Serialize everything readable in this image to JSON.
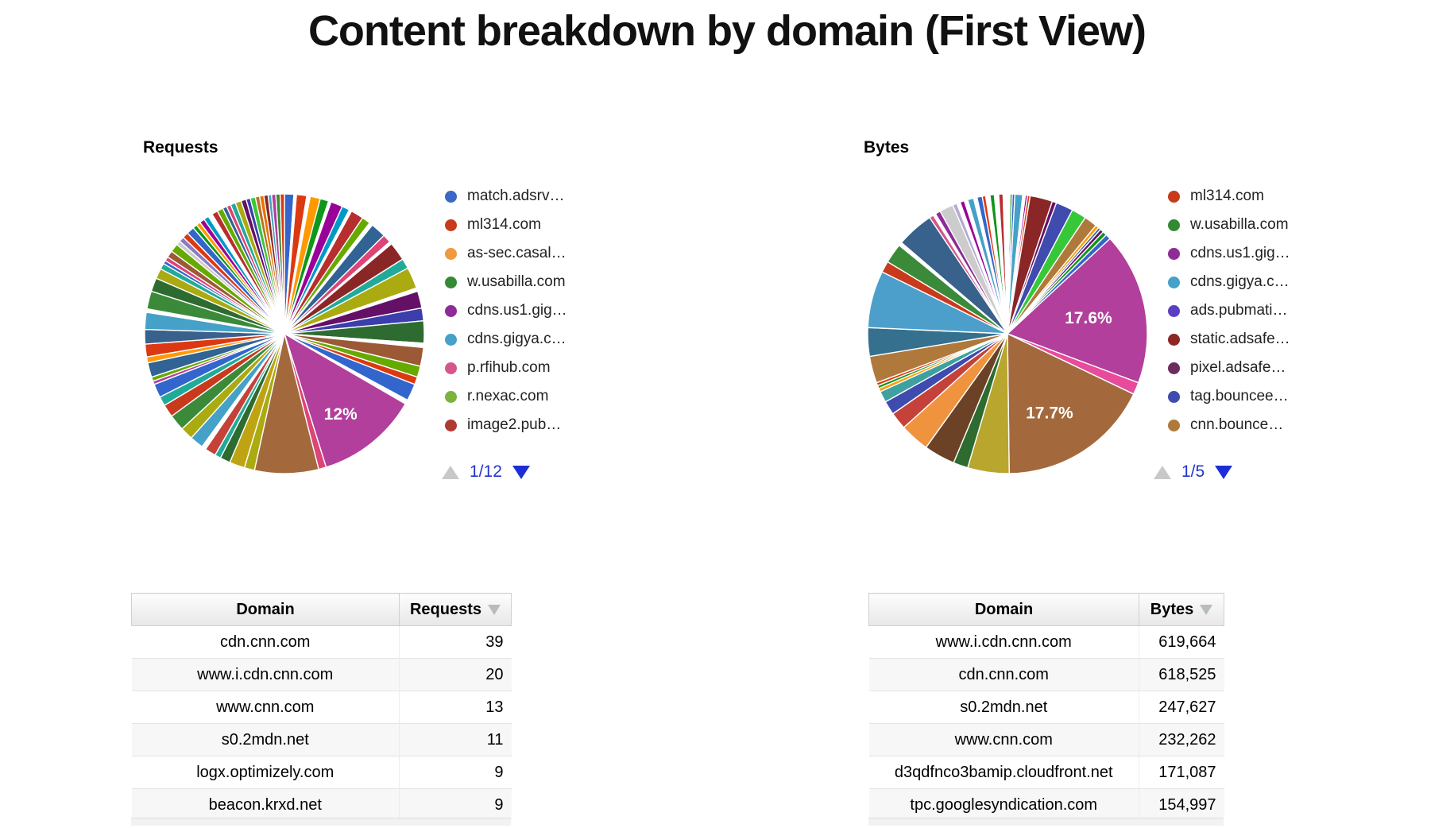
{
  "title": "Content breakdown by domain (First View)",
  "charts": {
    "requests": {
      "label": "Requests",
      "pager_label": "1/12",
      "legend": [
        {
          "label": "match.adsrv…",
          "color": "#3B68C5"
        },
        {
          "label": "ml314.com",
          "color": "#C93A1D"
        },
        {
          "label": "as-sec.casal…",
          "color": "#F0993E"
        },
        {
          "label": "w.usabilla.com",
          "color": "#338A33"
        },
        {
          "label": "cdns.us1.gig…",
          "color": "#8E2B96"
        },
        {
          "label": "cdns.gigya.c…",
          "color": "#45A1C7"
        },
        {
          "label": "p.rfihub.com",
          "color": "#D5578A"
        },
        {
          "label": "r.nexac.com",
          "color": "#7AB33E"
        },
        {
          "label": "image2.pub…",
          "color": "#AF3A34"
        }
      ],
      "labels": [
        {
          "text": "12%",
          "angle": 145,
          "rf": 0.7
        }
      ],
      "slices": [
        [
          1.1,
          "#3366CC"
        ],
        [
          0.3,
          "#FFFFFF"
        ],
        [
          1.2,
          "#DC3912"
        ],
        [
          0.4,
          "#FFFFFF"
        ],
        [
          1.2,
          "#FF9900"
        ],
        [
          1.0,
          "#109618"
        ],
        [
          0.3,
          "#FFFFFF"
        ],
        [
          1.4,
          "#990099"
        ],
        [
          0.9,
          "#0099C6"
        ],
        [
          0.3,
          "#FFFFFF"
        ],
        [
          1.5,
          "#B82E2E"
        ],
        [
          1.0,
          "#66AA00"
        ],
        [
          0.4,
          "#FFFFFF"
        ],
        [
          1.8,
          "#316395"
        ],
        [
          1.0,
          "#DD4477"
        ],
        [
          0.3,
          "#FFFFFF"
        ],
        [
          2.2,
          "#8B2626"
        ],
        [
          1.2,
          "#22AA99"
        ],
        [
          2.5,
          "#AAAA11"
        ],
        [
          0.4,
          "#FFFFFF"
        ],
        [
          2.0,
          "#651067"
        ],
        [
          1.5,
          "#3B3EAC"
        ],
        [
          2.6,
          "#2E6B30"
        ],
        [
          0.5,
          "#FFFFFF"
        ],
        [
          2.2,
          "#9C5935"
        ],
        [
          1.3,
          "#66AA00"
        ],
        [
          0.9,
          "#DC3912"
        ],
        [
          2.0,
          "#3366CC"
        ],
        [
          0.5,
          "#FFFFFF"
        ],
        [
          12.0,
          "#B23F9B"
        ],
        [
          0.9,
          "#DD4477"
        ],
        [
          7.5,
          "#A3693C"
        ],
        [
          1.2,
          "#AAAA11"
        ],
        [
          1.8,
          "#BEA413"
        ],
        [
          1.2,
          "#2E6B30"
        ],
        [
          0.7,
          "#22AA99"
        ],
        [
          1.3,
          "#C4423A"
        ],
        [
          0.5,
          "#FFFFFF"
        ],
        [
          1.6,
          "#45A1C7"
        ],
        [
          1.5,
          "#AAAA11"
        ],
        [
          1.9,
          "#3A8A3A"
        ],
        [
          1.5,
          "#C93A1D"
        ],
        [
          1.1,
          "#22AA99"
        ],
        [
          1.6,
          "#3366CC"
        ],
        [
          0.4,
          "#B23F9B"
        ],
        [
          0.5,
          "#66AA00"
        ],
        [
          1.7,
          "#316395"
        ],
        [
          0.7,
          "#FF9900"
        ],
        [
          1.5,
          "#DC3912"
        ],
        [
          1.7,
          "#38618C"
        ],
        [
          2.0,
          "#45A1C7"
        ],
        [
          0.4,
          "#FFFFFF"
        ],
        [
          2.1,
          "#3A8A3A"
        ],
        [
          1.6,
          "#2E6B30"
        ],
        [
          1.2,
          "#AAAA11"
        ],
        [
          0.7,
          "#22AA99"
        ],
        [
          0.4,
          "#3366CC"
        ],
        [
          0.5,
          "#DD4477"
        ],
        [
          0.8,
          "#9C5935"
        ],
        [
          1.0,
          "#66AA00"
        ],
        [
          0.5,
          "#CCCCCC"
        ],
        [
          0.6,
          "#8C7BC4"
        ],
        [
          0.7,
          "#DC3912"
        ],
        [
          0.9,
          "#3366CC"
        ],
        [
          0.5,
          "#109618"
        ],
        [
          0.5,
          "#FF9900"
        ],
        [
          0.6,
          "#990099"
        ],
        [
          0.6,
          "#0099C6"
        ],
        [
          0.5,
          "#FFFFFF"
        ],
        [
          0.7,
          "#B82E2E"
        ],
        [
          0.7,
          "#66AA00"
        ],
        [
          0.5,
          "#316395"
        ],
        [
          0.5,
          "#DD4477"
        ],
        [
          0.6,
          "#22AA99"
        ],
        [
          0.7,
          "#AAAA11"
        ],
        [
          0.6,
          "#651067"
        ],
        [
          0.5,
          "#3B3EAC"
        ],
        [
          0.6,
          "#37C837"
        ],
        [
          0.5,
          "#B77322"
        ],
        [
          0.5,
          "#E67300"
        ],
        [
          0.5,
          "#8B2626"
        ],
        [
          0.4,
          "#45A1C7"
        ],
        [
          0.5,
          "#B23F9B"
        ],
        [
          0.5,
          "#3A8A3A"
        ],
        [
          0.5,
          "#DC3912"
        ]
      ]
    },
    "bytes": {
      "label": "Bytes",
      "pager_label": "1/5",
      "legend": [
        {
          "label": "ml314.com",
          "color": "#C93A1D"
        },
        {
          "label": "w.usabilla.com",
          "color": "#338A33"
        },
        {
          "label": "cdns.us1.gig…",
          "color": "#8E2B96"
        },
        {
          "label": "cdns.gigya.c…",
          "color": "#45A1C7"
        },
        {
          "label": "ads.pubmati…",
          "color": "#5B3FC2"
        },
        {
          "label": "static.adsafe…",
          "color": "#8E2626"
        },
        {
          "label": "pixel.adsafe…",
          "color": "#6A2D5E"
        },
        {
          "label": "tag.bouncee…",
          "color": "#3F4BAE"
        },
        {
          "label": "cnn.bounce…",
          "color": "#B0793C"
        }
      ],
      "labels": [
        {
          "text": "17.6%",
          "angle": 79,
          "rf": 0.59
        },
        {
          "text": "17.7%",
          "angle": 152,
          "rf": 0.64
        }
      ],
      "slices": [
        [
          0.3,
          "#FFFFFF"
        ],
        [
          0.25,
          "#109618"
        ],
        [
          0.3,
          "#3366CC"
        ],
        [
          0.9,
          "#45A1C7"
        ],
        [
          0.3,
          "#FFFFFF"
        ],
        [
          0.25,
          "#990099"
        ],
        [
          0.3,
          "#DC3912"
        ],
        [
          2.6,
          "#8B2626"
        ],
        [
          0.5,
          "#651067"
        ],
        [
          2.0,
          "#3F4BAE"
        ],
        [
          1.7,
          "#37C837"
        ],
        [
          1.5,
          "#B0793C"
        ],
        [
          0.4,
          "#FF9900"
        ],
        [
          0.3,
          "#316395"
        ],
        [
          0.4,
          "#651067"
        ],
        [
          0.5,
          "#109618"
        ],
        [
          0.6,
          "#3366CC"
        ],
        [
          17.6,
          "#B23F9B"
        ],
        [
          1.4,
          "#E84A9C"
        ],
        [
          17.7,
          "#A3693C"
        ],
        [
          4.8,
          "#B8A62E"
        ],
        [
          1.7,
          "#2E6B30"
        ],
        [
          3.6,
          "#6B4226"
        ],
        [
          3.4,
          "#F0933E"
        ],
        [
          2.0,
          "#C4423A"
        ],
        [
          1.6,
          "#3F4BAE"
        ],
        [
          1.3,
          "#3FA0A0"
        ],
        [
          0.4,
          "#FF9900"
        ],
        [
          0.35,
          "#109618"
        ],
        [
          0.35,
          "#DC3912"
        ],
        [
          3.1,
          "#B0793C"
        ],
        [
          3.3,
          "#35708E"
        ],
        [
          6.6,
          "#4D9FCB"
        ],
        [
          1.3,
          "#C93A1D"
        ],
        [
          2.3,
          "#3A8A3A"
        ],
        [
          0.4,
          "#FFFFFF"
        ],
        [
          4.3,
          "#38618C"
        ],
        [
          0.5,
          "#D5578A"
        ],
        [
          0.3,
          "#FFFFFF"
        ],
        [
          0.6,
          "#8E2B96"
        ],
        [
          1.6,
          "#CCCCCC"
        ],
        [
          0.5,
          "#B5A9D4"
        ],
        [
          0.4,
          "#FFFFFF"
        ],
        [
          0.5,
          "#990099"
        ],
        [
          0.4,
          "#FFFFFF"
        ],
        [
          0.7,
          "#45A1C7"
        ],
        [
          0.4,
          "#FFFFFF"
        ],
        [
          0.6,
          "#3366CC"
        ],
        [
          0.4,
          "#DC3912"
        ],
        [
          0.5,
          "#FFFFFF"
        ],
        [
          0.5,
          "#109618"
        ],
        [
          0.5,
          "#FFFFFF"
        ],
        [
          0.5,
          "#B82E2E"
        ],
        [
          0.5,
          "#FFFFFF"
        ]
      ]
    }
  },
  "tables": {
    "requests": {
      "columns": [
        "Domain",
        "Requests"
      ],
      "rows": [
        [
          "cdn.cnn.com",
          "39"
        ],
        [
          "www.i.cdn.cnn.com",
          "20"
        ],
        [
          "www.cnn.com",
          "13"
        ],
        [
          "s0.2mdn.net",
          "11"
        ],
        [
          "logx.optimizely.com",
          "9"
        ],
        [
          "beacon.krxd.net",
          "9"
        ]
      ]
    },
    "bytes": {
      "columns": [
        "Domain",
        "Bytes"
      ],
      "rows": [
        [
          "www.i.cdn.cnn.com",
          "619,664"
        ],
        [
          "cdn.cnn.com",
          "618,525"
        ],
        [
          "s0.2mdn.net",
          "247,627"
        ],
        [
          "www.cnn.com",
          "232,262"
        ],
        [
          "d3qdfnco3bamip.cloudfront.net",
          "171,087"
        ],
        [
          "tpc.googlesyndication.com",
          "154,997"
        ]
      ]
    }
  },
  "chart_data": [
    {
      "type": "pie",
      "title": "Requests",
      "legend_position": "right",
      "legend_pager": "1/12",
      "legend": [
        "match.adsrv…",
        "ml314.com",
        "as-sec.casal…",
        "w.usabilla.com",
        "cdns.us1.gig…",
        "cdns.gigya.c…",
        "p.rfihub.com",
        "r.nexac.com",
        "image2.pub…"
      ],
      "data_labels": [
        {
          "label": "12%",
          "value": 12,
          "slice_color": "#B23F9B"
        }
      ]
    },
    {
      "type": "pie",
      "title": "Bytes",
      "legend_position": "right",
      "legend_pager": "1/5",
      "legend": [
        "ml314.com",
        "w.usabilla.com",
        "cdns.us1.gig…",
        "cdns.gigya.c…",
        "ads.pubmati…",
        "static.adsafe…",
        "pixel.adsafe…",
        "tag.bouncee…",
        "cnn.bounce…"
      ],
      "data_labels": [
        {
          "label": "17.6%",
          "value": 17.6,
          "slice_color": "#B23F9B"
        },
        {
          "label": "17.7%",
          "value": 17.7,
          "slice_color": "#A3693C"
        }
      ]
    },
    {
      "type": "table",
      "columns": [
        "Domain",
        "Requests"
      ],
      "sorted_by": "Requests",
      "rows": [
        [
          "cdn.cnn.com",
          39
        ],
        [
          "www.i.cdn.cnn.com",
          20
        ],
        [
          "www.cnn.com",
          13
        ],
        [
          "s0.2mdn.net",
          11
        ],
        [
          "logx.optimizely.com",
          9
        ],
        [
          "beacon.krxd.net",
          9
        ]
      ]
    },
    {
      "type": "table",
      "columns": [
        "Domain",
        "Bytes"
      ],
      "sorted_by": "Bytes",
      "rows": [
        [
          "www.i.cdn.cnn.com",
          619664
        ],
        [
          "cdn.cnn.com",
          618525
        ],
        [
          "s0.2mdn.net",
          247627
        ],
        [
          "www.cnn.com",
          232262
        ],
        [
          "d3qdfnco3bamip.cloudfront.net",
          171087
        ],
        [
          "tpc.googlesyndication.com",
          154997
        ]
      ]
    }
  ]
}
